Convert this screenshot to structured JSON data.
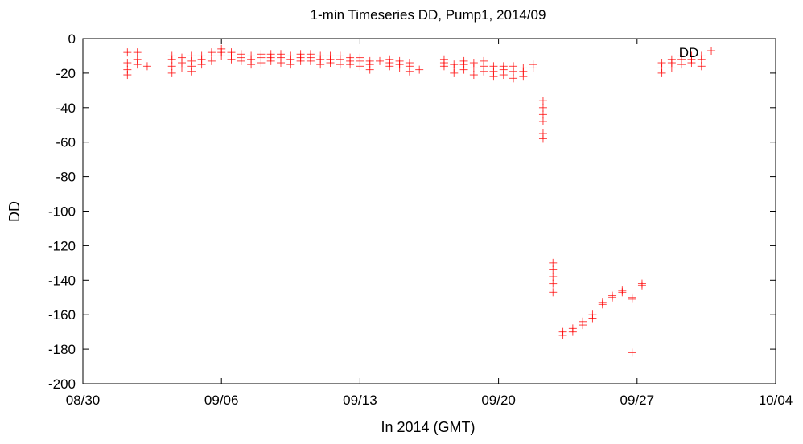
{
  "chart_data": {
    "type": "scatter",
    "title": "1-min Timeseries DD, Pump1, 2014/09",
    "xlabel": "In 2014 (GMT)",
    "ylabel": "DD",
    "x_range": [
      "2014-08-30",
      "2014-10-04"
    ],
    "ylim": [
      -200,
      0
    ],
    "x_ticks": [
      {
        "date": "2014-08-30",
        "label": "08/30"
      },
      {
        "date": "2014-09-06",
        "label": "09/06"
      },
      {
        "date": "2014-09-13",
        "label": "09/13"
      },
      {
        "date": "2014-09-20",
        "label": "09/20"
      },
      {
        "date": "2014-09-27",
        "label": "09/27"
      },
      {
        "date": "2014-10-04",
        "label": "10/04"
      }
    ],
    "y_ticks": [
      {
        "value": 0,
        "label": "0"
      },
      {
        "value": -20,
        "label": "-20"
      },
      {
        "value": -40,
        "label": "-40"
      },
      {
        "value": -60,
        "label": "-60"
      },
      {
        "value": -80,
        "label": "-80"
      },
      {
        "value": -100,
        "label": "-100"
      },
      {
        "value": -120,
        "label": "-120"
      },
      {
        "value": -140,
        "label": "-140"
      },
      {
        "value": -160,
        "label": "-160"
      },
      {
        "value": -180,
        "label": "-180"
      },
      {
        "value": -200,
        "label": "-200"
      }
    ],
    "grid": false,
    "legend_position": "top-right",
    "marker": "plus",
    "series": [
      {
        "name": "DD",
        "color": "#ff0000",
        "points": [
          {
            "x": "2014-09-01 06:00",
            "y": [
              -8,
              -14,
              -18,
              -21
            ]
          },
          {
            "x": "2014-09-01 18:00",
            "y": [
              -8,
              -12,
              -15
            ]
          },
          {
            "x": "2014-09-02 06:00",
            "y": [
              -16
            ]
          },
          {
            "x": "2014-09-03 12:00",
            "y": [
              -10,
              -12,
              -16,
              -20
            ]
          },
          {
            "x": "2014-09-04 00:00",
            "y": [
              -11,
              -14,
              -17
            ]
          },
          {
            "x": "2014-09-04 12:00",
            "y": [
              -10,
              -13,
              -16,
              -19
            ]
          },
          {
            "x": "2014-09-05 00:00",
            "y": [
              -10,
              -12,
              -15
            ]
          },
          {
            "x": "2014-09-05 12:00",
            "y": [
              -8,
              -10,
              -13
            ]
          },
          {
            "x": "2014-09-06 00:00",
            "y": [
              -6,
              -8,
              -10
            ]
          },
          {
            "x": "2014-09-06 12:00",
            "y": [
              -8,
              -10,
              -12
            ]
          },
          {
            "x": "2014-09-07 00:00",
            "y": [
              -9,
              -11,
              -13
            ]
          },
          {
            "x": "2014-09-07 12:00",
            "y": [
              -10,
              -12,
              -15
            ]
          },
          {
            "x": "2014-09-08 00:00",
            "y": [
              -9,
              -11,
              -14
            ]
          },
          {
            "x": "2014-09-08 12:00",
            "y": [
              -9,
              -11,
              -13
            ]
          },
          {
            "x": "2014-09-09 00:00",
            "y": [
              -9,
              -11,
              -14
            ]
          },
          {
            "x": "2014-09-09 12:00",
            "y": [
              -10,
              -12,
              -15
            ]
          },
          {
            "x": "2014-09-10 00:00",
            "y": [
              -9,
              -11,
              -13
            ]
          },
          {
            "x": "2014-09-10 12:00",
            "y": [
              -9,
              -11,
              -13
            ]
          },
          {
            "x": "2014-09-11 00:00",
            "y": [
              -10,
              -12,
              -15
            ]
          },
          {
            "x": "2014-09-11 12:00",
            "y": [
              -10,
              -12,
              -14
            ]
          },
          {
            "x": "2014-09-12 00:00",
            "y": [
              -10,
              -12,
              -15
            ]
          },
          {
            "x": "2014-09-12 12:00",
            "y": [
              -11,
              -13,
              -15
            ]
          },
          {
            "x": "2014-09-13 00:00",
            "y": [
              -11,
              -13,
              -16
            ]
          },
          {
            "x": "2014-09-13 12:00",
            "y": [
              -13,
              -15,
              -18
            ]
          },
          {
            "x": "2014-09-14 00:00",
            "y": [
              -13
            ]
          },
          {
            "x": "2014-09-14 12:00",
            "y": [
              -12,
              -14,
              -16
            ]
          },
          {
            "x": "2014-09-15 00:00",
            "y": [
              -13,
              -15,
              -17
            ]
          },
          {
            "x": "2014-09-15 12:00",
            "y": [
              -14,
              -16,
              -19
            ]
          },
          {
            "x": "2014-09-16 00:00",
            "y": [
              -18
            ]
          },
          {
            "x": "2014-09-17 06:00",
            "y": [
              -12,
              -14,
              -16
            ]
          },
          {
            "x": "2014-09-17 18:00",
            "y": [
              -15,
              -17,
              -20
            ]
          },
          {
            "x": "2014-09-18 06:00",
            "y": [
              -13,
              -15,
              -18
            ]
          },
          {
            "x": "2014-09-18 18:00",
            "y": [
              -14,
              -17,
              -21
            ]
          },
          {
            "x": "2014-09-19 06:00",
            "y": [
              -13,
              -16,
              -19
            ]
          },
          {
            "x": "2014-09-19 18:00",
            "y": [
              -16,
              -19,
              -22
            ]
          },
          {
            "x": "2014-09-20 06:00",
            "y": [
              -16,
              -18,
              -21
            ]
          },
          {
            "x": "2014-09-20 18:00",
            "y": [
              -16,
              -19,
              -23
            ]
          },
          {
            "x": "2014-09-21 06:00",
            "y": [
              -17,
              -19,
              -22
            ]
          },
          {
            "x": "2014-09-21 18:00",
            "y": [
              -15,
              -17
            ]
          },
          {
            "x": "2014-09-22 06:00",
            "y": [
              -36,
              -40,
              -44,
              -48,
              -55,
              -58
            ]
          },
          {
            "x": "2014-09-22 18:00",
            "y": [
              -130,
              -134,
              -138,
              -142,
              -147
            ]
          },
          {
            "x": "2014-09-23 06:00",
            "y": [
              -170,
              -172
            ]
          },
          {
            "x": "2014-09-23 18:00",
            "y": [
              -168,
              -170
            ]
          },
          {
            "x": "2014-09-24 06:00",
            "y": [
              -164,
              -166
            ]
          },
          {
            "x": "2014-09-24 18:00",
            "y": [
              -160,
              -162
            ]
          },
          {
            "x": "2014-09-25 06:00",
            "y": [
              -153,
              -154
            ]
          },
          {
            "x": "2014-09-25 18:00",
            "y": [
              -149,
              -150
            ]
          },
          {
            "x": "2014-09-26 06:00",
            "y": [
              -146,
              -147
            ]
          },
          {
            "x": "2014-09-26 18:00",
            "y": [
              -150,
              -151,
              -182
            ]
          },
          {
            "x": "2014-09-27 06:00",
            "y": [
              -142,
              -143
            ]
          },
          {
            "x": "2014-09-28 06:00",
            "y": [
              -14,
              -17,
              -20
            ]
          },
          {
            "x": "2014-09-28 18:00",
            "y": [
              -12,
              -14,
              -17
            ]
          },
          {
            "x": "2014-09-29 06:00",
            "y": [
              -10,
              -12,
              -15
            ]
          },
          {
            "x": "2014-09-29 18:00",
            "y": [
              -10,
              -12,
              -14
            ]
          },
          {
            "x": "2014-09-30 06:00",
            "y": [
              -10,
              -12,
              -16
            ]
          },
          {
            "x": "2014-09-30 18:00",
            "y": [
              -7
            ]
          }
        ]
      }
    ]
  }
}
